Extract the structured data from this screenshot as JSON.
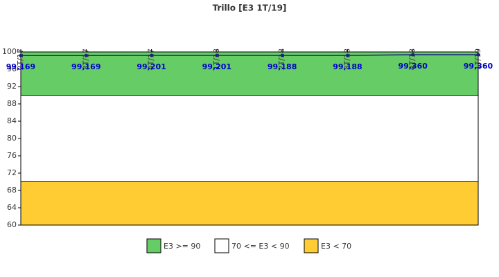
{
  "chart_data": {
    "type": "line",
    "title": "Trillo [E3 1T/19]",
    "categories": [
      "2T/17",
      "3T/17",
      "4T/17",
      "1T/18",
      "2T/18",
      "3T/18",
      "4T/18",
      "1T/19"
    ],
    "values": [
      99.169,
      99.169,
      99.201,
      99.201,
      99.188,
      99.188,
      99.36,
      99.36
    ],
    "value_labels": [
      "99,169",
      "99,169",
      "99,201",
      "99,201",
      "99,188",
      "99,188",
      "99,360",
      "99,360"
    ],
    "color": "#1a237e",
    "label_color": "#0000cc",
    "ylim": [
      60,
      100
    ],
    "yticks": [
      60,
      64,
      68,
      72,
      76,
      80,
      84,
      88,
      92,
      96,
      100
    ],
    "grid": false,
    "bands": [
      {
        "name": "E3 >= 90",
        "color": "#66cc66",
        "from": 90,
        "to": 100
      },
      {
        "name": "70 <= E3 < 90",
        "color": "#ffffff",
        "from": 70,
        "to": 90
      },
      {
        "name": "E3 < 70",
        "color": "#ffcc33",
        "from": 60,
        "to": 70
      }
    ]
  }
}
